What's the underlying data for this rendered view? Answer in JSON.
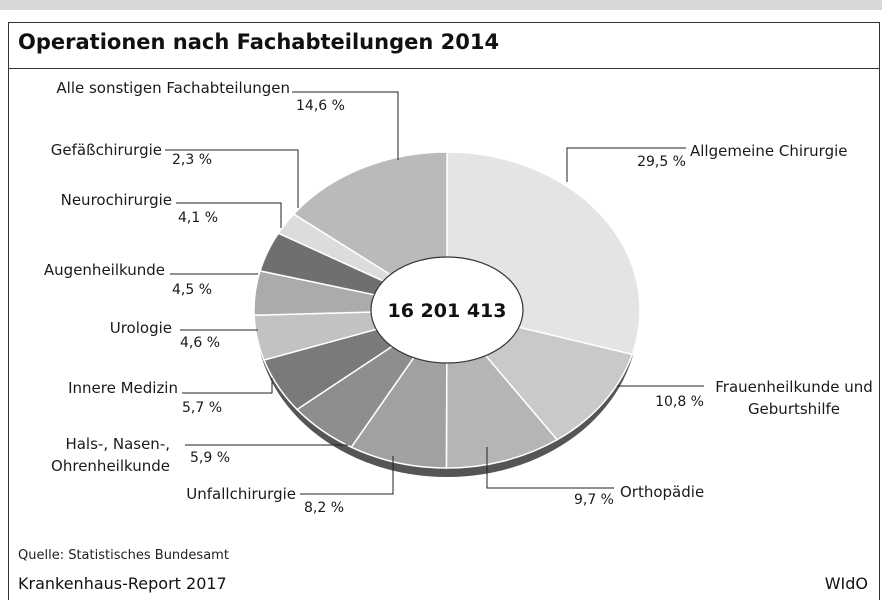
{
  "chart_data": {
    "type": "pie",
    "title": "Operationen nach Fachabteilungen 2014",
    "center_label": "16 201 413",
    "categories": [
      "Allgemeine Chirurgie",
      "Frauenheilkunde und\nGeburtshilfe",
      "Orthopädie",
      "Unfallchirurgie",
      "Hals-, Nasen-,\nOhrenheilkunde",
      "Innere Medizin",
      "Urologie",
      "Augenheilkunde",
      "Neurochirurgie",
      "Gefäßchirurgie",
      "Alle sonstigen Fachabteilungen"
    ],
    "values": [
      29.5,
      10.8,
      9.7,
      8.2,
      5.9,
      5.7,
      4.6,
      4.5,
      4.1,
      2.3,
      14.6
    ],
    "value_labels": [
      "29,5 %",
      "10,8 %",
      "9,7 %",
      "8,2 %",
      "5,9 %",
      "5,7 %",
      "4,6 %",
      "4,5 %",
      "4,1 %",
      "2,3 %",
      "14,6 %"
    ],
    "colors": [
      "#e4e4e4",
      "#c9c9c9",
      "#b5b5b5",
      "#a1a1a1",
      "#8e8e8e",
      "#7a7a7a",
      "#c2c2c2",
      "#ababab",
      "#6f6f6f",
      "#dcdcdc",
      "#bababa"
    ],
    "source": "Quelle: Statistisches Bundesamt",
    "footer_left": "Krankenhaus-Report 2017",
    "footer_right": "WIdO"
  }
}
